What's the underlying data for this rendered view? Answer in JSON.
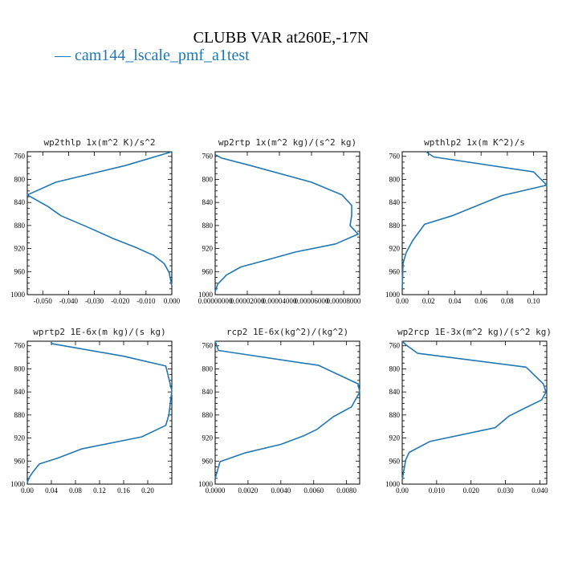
{
  "title": "CLUBB VAR at260E,-17N",
  "legend": {
    "dash": "—",
    "label": "cam144_lscale_pmf_a1test"
  },
  "colors": {
    "line": "#1f77b4"
  },
  "chart_data": [
    {
      "type": "line",
      "title": "wp2thlp  1x(m^2 K)/s^2",
      "y_axis": "pressure (inverted)",
      "ylim": [
        1000,
        752
      ],
      "yticks": [
        760,
        800,
        840,
        880,
        920,
        960,
        1000
      ],
      "xlim": [
        -0.056,
        0.0
      ],
      "xtick_labels": [
        "-0.050",
        "-0.040",
        "-0.030",
        "-0.020",
        "-0.010",
        "0.000"
      ],
      "series": [
        {
          "x": [
            0.0,
            -0.018,
            -0.045,
            -0.056,
            -0.048,
            -0.043,
            -0.033,
            -0.023,
            -0.014,
            -0.007,
            -0.003,
            -0.001,
            0.0
          ],
          "y": [
            752,
            776,
            805,
            827,
            847,
            863,
            882,
            902,
            918,
            932,
            946,
            962,
            985
          ]
        }
      ]
    },
    {
      "type": "line",
      "title": "wp2rtp  1x(m^2 kg)/(s^2 kg)",
      "y_axis": "pressure (inverted)",
      "ylim": [
        1000,
        752
      ],
      "yticks": [
        760,
        800,
        840,
        880,
        920,
        960,
        1000
      ],
      "xlim": [
        0.0,
        9e-05
      ],
      "xtick_labels": [
        "0.00000000",
        "0.00002000",
        "0.00004000",
        "0.00006000",
        "0.00008000"
      ],
      "series": [
        {
          "x": [
            0.0,
            4e-06,
            2.2e-05,
            6e-05,
            7.9e-05,
            8.5e-05,
            8.5e-05,
            8.4e-05,
            8.9e-05,
            7.5e-05,
            5e-05,
            3.2e-05,
            1.6e-05,
            7e-06,
            1.5e-06,
            0.0
          ],
          "y": [
            757,
            763,
            776,
            805,
            827,
            845,
            863,
            880,
            895,
            912,
            926,
            940,
            952,
            966,
            982,
            995
          ]
        }
      ]
    },
    {
      "type": "line",
      "title": "wpthlp2  1x(m K^2)/s",
      "y_axis": "pressure (inverted)",
      "ylim": [
        1000,
        752
      ],
      "yticks": [
        760,
        800,
        840,
        880,
        920,
        960,
        1000
      ],
      "xlim": [
        0.0,
        0.11
      ],
      "xtick_labels": [
        "0.00",
        "0.02",
        "0.04",
        "0.06",
        "0.08",
        "0.10"
      ],
      "series": [
        {
          "x": [
            0.018,
            0.024,
            0.1,
            0.11,
            0.076,
            0.038,
            0.017,
            0.008,
            0.003,
            0.0006,
            0.0
          ],
          "y": [
            752,
            761,
            787,
            810,
            828,
            863,
            878,
            906,
            927,
            946,
            990
          ]
        }
      ]
    },
    {
      "type": "line",
      "title": "wprtp2  1E-6x(m kg)/(s kg)",
      "y_axis": "pressure (inverted)",
      "ylim": [
        1000,
        752
      ],
      "yticks": [
        760,
        800,
        840,
        880,
        920,
        960,
        1000
      ],
      "xlim": [
        0.0,
        0.24
      ],
      "xtick_labels": [
        "0.00",
        "0.04",
        "0.08",
        "0.12",
        "0.16",
        "0.20"
      ],
      "series": [
        {
          "x": [
            0.04,
            0.04,
            0.16,
            0.23,
            0.24,
            0.235,
            0.23,
            0.19,
            0.09,
            0.05,
            0.02,
            0.01,
            0.004,
            0.001,
            0.0
          ],
          "y": [
            752,
            756,
            778,
            795,
            838,
            880,
            898,
            918,
            939,
            955,
            965,
            978,
            987,
            994,
            998
          ]
        }
      ]
    },
    {
      "type": "line",
      "title": "rcp2  1E-6x(kg^2)/(kg^2)",
      "y_axis": "pressure (inverted)",
      "ylim": [
        1000,
        752
      ],
      "yticks": [
        760,
        800,
        840,
        880,
        920,
        960,
        1000
      ],
      "xlim": [
        0.0,
        0.0088
      ],
      "xtick_labels": [
        "0.0000",
        "0.0020",
        "0.0040",
        "0.0060",
        "0.0080"
      ],
      "series": [
        {
          "x": [
            0.0,
            0.0002,
            0.0063,
            0.0087,
            0.0088,
            0.0083,
            0.0072,
            0.0062,
            0.0054,
            0.004,
            0.0018,
            0.0003,
            0.0
          ],
          "y": [
            752,
            768,
            794,
            826,
            840,
            866,
            883,
            905,
            916,
            931,
            946,
            961,
            990
          ]
        }
      ]
    },
    {
      "type": "line",
      "title": "wp2rcp  1E-3x(m^2 kg)/(s^2 kg)",
      "y_axis": "pressure (inverted)",
      "ylim": [
        1000,
        752
      ],
      "yticks": [
        760,
        800,
        840,
        880,
        920,
        960,
        1000
      ],
      "xlim": [
        0.0,
        0.042
      ],
      "xtick_labels": [
        "0.00",
        "0.010",
        "0.020",
        "0.030",
        "0.040"
      ],
      "series": [
        {
          "x": [
            0.0,
            0.001,
            0.0045,
            0.036,
            0.041,
            0.0418,
            0.0405,
            0.036,
            0.031,
            0.027,
            0.008,
            0.002,
            0.001,
            0.0
          ],
          "y": [
            752,
            758,
            773,
            797,
            826,
            840,
            854,
            867,
            882,
            902,
            926,
            945,
            958,
            992
          ]
        }
      ]
    }
  ]
}
